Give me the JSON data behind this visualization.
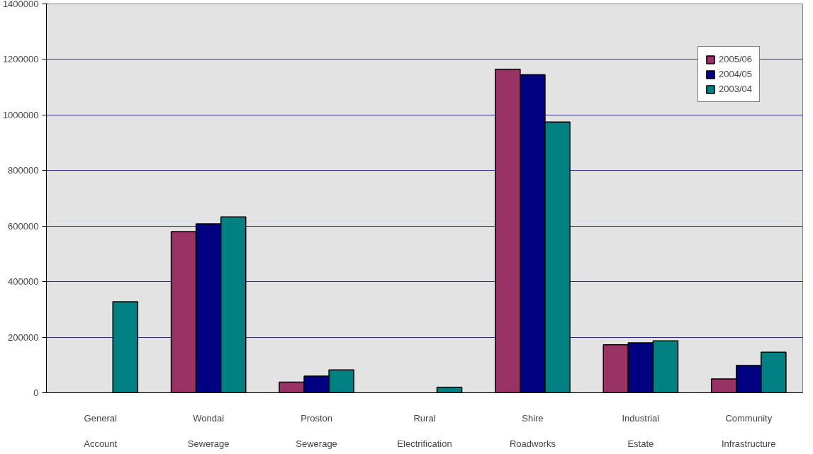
{
  "chart_data": {
    "type": "bar",
    "categories": [
      "General\n\nAccount",
      "Wondai\n\nSewerage",
      "Proston\n\nSewerage",
      "Rural\n\nElectrification",
      "Shire\n\nRoadworks",
      "Industrial\n\nEstate",
      "Community\n\nInfrastructure"
    ],
    "series": [
      {
        "name": "2005/06",
        "color": "#993366",
        "values": [
          null,
          580000,
          38000,
          null,
          1165000,
          173000,
          50000
        ]
      },
      {
        "name": "2004/05",
        "color": "#000080",
        "values": [
          null,
          608000,
          60000,
          null,
          1145000,
          180000,
          98000
        ]
      },
      {
        "name": "2003/04",
        "color": "#008080",
        "values": [
          328000,
          633000,
          82000,
          20000,
          975000,
          187000,
          146000
        ]
      }
    ],
    "ylim": [
      0,
      1400000
    ],
    "yticks": [
      0,
      200000,
      400000,
      600000,
      800000,
      1000000,
      1200000,
      1400000
    ],
    "grid": "y",
    "legend": "top right"
  }
}
